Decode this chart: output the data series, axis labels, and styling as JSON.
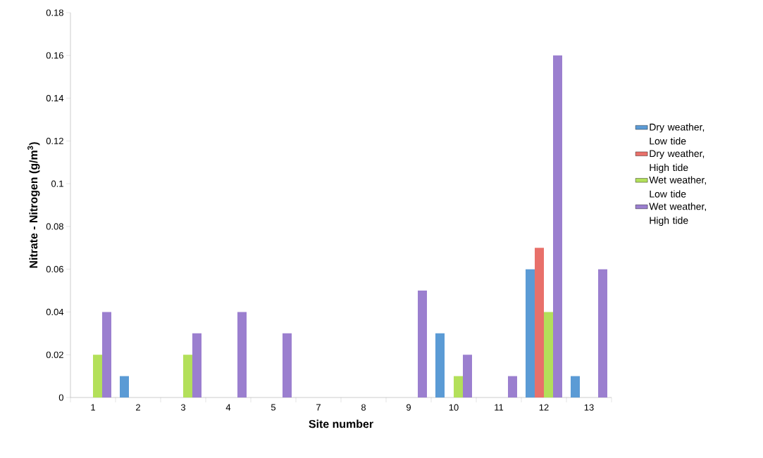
{
  "chart_data": {
    "type": "bar",
    "xlabel": "Site number",
    "ylabel": "Nitrate - Nitrogen (g/m$^{3}$)",
    "categories": [
      "1",
      "2",
      "3",
      "4",
      "5",
      "7",
      "8",
      "9",
      "10",
      "11",
      "12",
      "13"
    ],
    "series": [
      {
        "name": "Dry weather, Low tide",
        "color": "#5b9bd5",
        "values": [
          0,
          0.01,
          0,
          0,
          0,
          0,
          0,
          0,
          0.03,
          0,
          0.06,
          0.01
        ]
      },
      {
        "name": "Dry weather, High tide",
        "color": "#e8706a",
        "values": [
          0,
          0,
          0,
          0,
          0,
          0,
          0,
          0,
          0,
          0,
          0.07,
          0
        ]
      },
      {
        "name": "Wet weather, Low tide",
        "color": "#b3e05a",
        "values": [
          0.02,
          0,
          0.02,
          0,
          0,
          0,
          0,
          0,
          0.01,
          0,
          0.04,
          0
        ]
      },
      {
        "name": "Wet weather, High tide",
        "color": "#9b7fcf",
        "values": [
          0.04,
          0,
          0.03,
          0.04,
          0.03,
          0,
          0,
          0.05,
          0.02,
          0.01,
          0.16,
          0.06
        ]
      }
    ],
    "ylim": [
      0,
      0.18
    ],
    "yticks": [
      0,
      0.02,
      0.04,
      0.06,
      0.08,
      0.1,
      0.12,
      0.14,
      0.16,
      0.18
    ],
    "grid": false,
    "legend": "right"
  }
}
